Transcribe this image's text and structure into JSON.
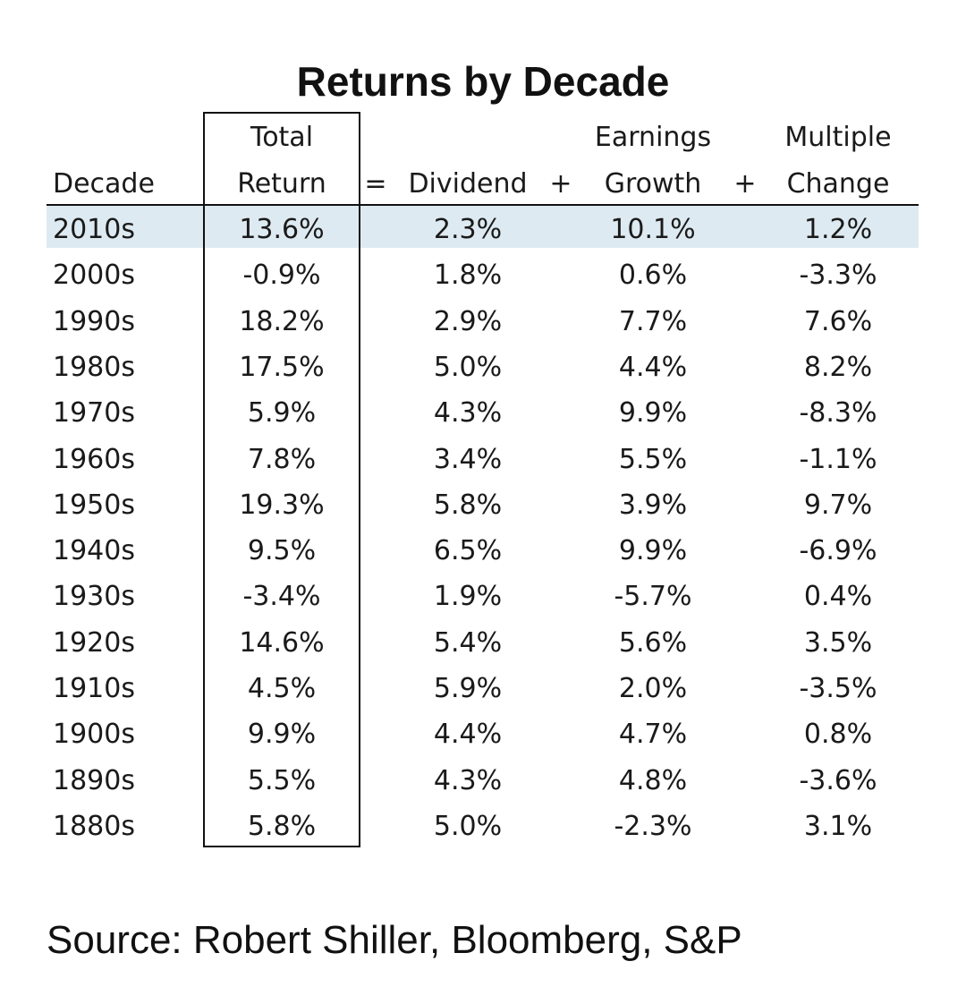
{
  "chart_data": {
    "type": "table",
    "title": "Returns by Decade",
    "header": {
      "decade": [
        "Decade"
      ],
      "total_return": [
        "Total",
        "Return"
      ],
      "eq": "=",
      "dividend": [
        "Dividend"
      ],
      "plus1": "+",
      "earnings_growth": [
        "Earnings",
        "Growth"
      ],
      "plus2": "+",
      "multiple_change": [
        "Multiple",
        "Change"
      ]
    },
    "columns": [
      "Decade",
      "Total Return",
      "Dividend",
      "Earnings Growth",
      "Multiple Change"
    ],
    "rows": [
      [
        "2010s",
        "13.6%",
        "2.3%",
        "10.1%",
        "1.2%"
      ],
      [
        "2000s",
        "-0.9%",
        "1.8%",
        "0.6%",
        "-3.3%"
      ],
      [
        "1990s",
        "18.2%",
        "2.9%",
        "7.7%",
        "7.6%"
      ],
      [
        "1980s",
        "17.5%",
        "5.0%",
        "4.4%",
        "8.2%"
      ],
      [
        "1970s",
        "5.9%",
        "4.3%",
        "9.9%",
        "-8.3%"
      ],
      [
        "1960s",
        "7.8%",
        "3.4%",
        "5.5%",
        "-1.1%"
      ],
      [
        "1950s",
        "19.3%",
        "5.8%",
        "3.9%",
        "9.7%"
      ],
      [
        "1940s",
        "9.5%",
        "6.5%",
        "9.9%",
        "-6.9%"
      ],
      [
        "1930s",
        "-3.4%",
        "1.9%",
        "-5.7%",
        "0.4%"
      ],
      [
        "1920s",
        "14.6%",
        "5.4%",
        "5.6%",
        "3.5%"
      ],
      [
        "1910s",
        "4.5%",
        "5.9%",
        "2.0%",
        "-3.5%"
      ],
      [
        "1900s",
        "9.9%",
        "4.4%",
        "4.7%",
        "0.8%"
      ],
      [
        "1890s",
        "5.5%",
        "4.3%",
        "4.8%",
        "-3.6%"
      ],
      [
        "1880s",
        "5.8%",
        "5.0%",
        "-2.3%",
        "3.1%"
      ]
    ],
    "highlighted_row": "2010s",
    "highlight_color": "#deeaf1"
  },
  "source": "Source: Robert Shiller, Bloomberg, S&P"
}
